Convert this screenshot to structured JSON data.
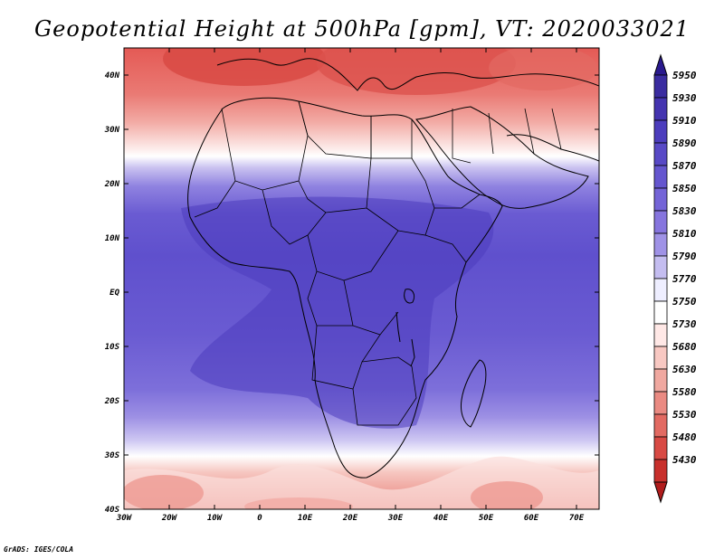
{
  "title": "Geopotential Height at 500hPa [gpm], VT: 2020033021",
  "footer": "GrADS: IGES/COLA",
  "map": {
    "lon_range": [
      -30,
      75
    ],
    "lat_range": [
      -40,
      45
    ],
    "lon_ticks": [
      {
        "value": -30,
        "label": "30W"
      },
      {
        "value": -20,
        "label": "20W"
      },
      {
        "value": -10,
        "label": "10W"
      },
      {
        "value": 0,
        "label": "0"
      },
      {
        "value": 10,
        "label": "10E"
      },
      {
        "value": 20,
        "label": "20E"
      },
      {
        "value": 30,
        "label": "30E"
      },
      {
        "value": 40,
        "label": "40E"
      },
      {
        "value": 50,
        "label": "50E"
      },
      {
        "value": 60,
        "label": "60E"
      },
      {
        "value": 70,
        "label": "70E"
      }
    ],
    "lat_ticks": [
      {
        "value": 40,
        "label": "40N"
      },
      {
        "value": 30,
        "label": "30N"
      },
      {
        "value": 20,
        "label": "20N"
      },
      {
        "value": 10,
        "label": "10N"
      },
      {
        "value": 0,
        "label": "EQ"
      },
      {
        "value": -10,
        "label": "10S"
      },
      {
        "value": -20,
        "label": "20S"
      },
      {
        "value": -30,
        "label": "30S"
      },
      {
        "value": -40,
        "label": "40S"
      }
    ]
  },
  "colorbar": {
    "levels": [
      "5950",
      "5930",
      "5910",
      "5890",
      "5870",
      "5850",
      "5830",
      "5810",
      "5790",
      "5770",
      "5750",
      "5730",
      "5680",
      "5630",
      "5580",
      "5530",
      "5480",
      "5430"
    ],
    "colors": {
      "top_arrow": "#2a1a8e",
      "bottom_arrow": "#b01c1c",
      "bins": [
        "#3a2ca0",
        "#4434b0",
        "#4c3dbd",
        "#5849c6",
        "#6556cf",
        "#7464d7",
        "#8675de",
        "#9f92e6",
        "#c4bdf0",
        "#eeeeff",
        "#ffffff",
        "#ffe8e6",
        "#f8c8c2",
        "#f0a8a0",
        "#ea8a82",
        "#e26a62",
        "#d84a44",
        "#c8302c"
      ]
    }
  }
}
